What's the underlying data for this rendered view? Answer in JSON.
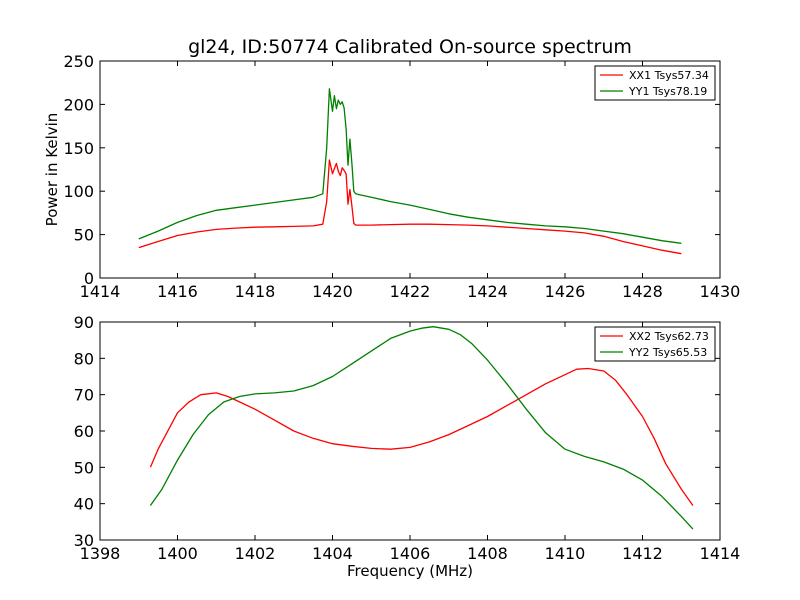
{
  "chart_data": [
    {
      "type": "line",
      "title": "gl24, ID:50774 Calibrated On-source spectrum",
      "xlabel": "",
      "ylabel": "Power in Kelvin",
      "xlim": [
        1414,
        1430
      ],
      "ylim": [
        0,
        250
      ],
      "xticks": [
        "1414",
        "1416",
        "1418",
        "1420",
        "1422",
        "1424",
        "1426",
        "1428",
        "1430"
      ],
      "yticks": [
        "0",
        "50",
        "100",
        "150",
        "200",
        "250"
      ],
      "legend_position": "top-right",
      "grid": false,
      "series": [
        {
          "name": "XX1 Tsys57.34",
          "color": "#ff0000",
          "x": [
            1415.0,
            1415.5,
            1416.0,
            1416.5,
            1417.0,
            1417.5,
            1418.0,
            1418.5,
            1419.0,
            1419.5,
            1419.75,
            1419.85,
            1419.92,
            1420.0,
            1420.05,
            1420.1,
            1420.15,
            1420.2,
            1420.25,
            1420.3,
            1420.35,
            1420.4,
            1420.45,
            1420.5,
            1420.55,
            1420.6,
            1420.7,
            1421.0,
            1421.5,
            1422.0,
            1422.5,
            1423.0,
            1423.5,
            1424.0,
            1424.5,
            1425.0,
            1425.5,
            1426.0,
            1426.5,
            1427.0,
            1427.5,
            1428.0,
            1428.5,
            1429.0
          ],
          "y": [
            35,
            42,
            49,
            53,
            56,
            57.5,
            58.5,
            59,
            59.5,
            60,
            62,
            88,
            136,
            120,
            126,
            132,
            123,
            118,
            127,
            124,
            120,
            85,
            102,
            83,
            63,
            61,
            61,
            61,
            61.5,
            62,
            62,
            61.5,
            61,
            60,
            58.5,
            57,
            55.5,
            54,
            52,
            48,
            42,
            37,
            32,
            28
          ]
        },
        {
          "name": "YY1 Tsys78.19",
          "color": "#008000",
          "x": [
            1415.0,
            1415.5,
            1416.0,
            1416.5,
            1417.0,
            1417.5,
            1418.0,
            1418.5,
            1419.0,
            1419.5,
            1419.75,
            1419.85,
            1419.92,
            1420.0,
            1420.05,
            1420.1,
            1420.15,
            1420.2,
            1420.25,
            1420.3,
            1420.35,
            1420.4,
            1420.45,
            1420.5,
            1420.55,
            1420.6,
            1420.7,
            1421.0,
            1421.5,
            1422.0,
            1422.5,
            1423.0,
            1423.5,
            1424.0,
            1424.5,
            1425.0,
            1425.5,
            1426.0,
            1426.5,
            1427.0,
            1427.5,
            1428.0,
            1428.5,
            1429.0
          ],
          "y": [
            45,
            54,
            64,
            72,
            78,
            81,
            84,
            87,
            90,
            93,
            97,
            150,
            218,
            192,
            210,
            195,
            205,
            200,
            203,
            196,
            172,
            130,
            160,
            132,
            100,
            97,
            96,
            93,
            88,
            84,
            79,
            74,
            70,
            67,
            64,
            62,
            60,
            59,
            57,
            54,
            51,
            47,
            43,
            40
          ]
        }
      ]
    },
    {
      "type": "line",
      "title": "",
      "xlabel": "Frequency (MHz)",
      "ylabel": "",
      "xlim": [
        1398,
        1414
      ],
      "ylim": [
        30,
        90
      ],
      "xticks": [
        "1398",
        "1400",
        "1402",
        "1404",
        "1406",
        "1408",
        "1410",
        "1412",
        "1414"
      ],
      "yticks": [
        "30",
        "40",
        "50",
        "60",
        "70",
        "80",
        "90"
      ],
      "legend_position": "top-right",
      "grid": false,
      "series": [
        {
          "name": "XX2 Tsys62.73",
          "color": "#ff0000",
          "x": [
            1399.3,
            1399.5,
            1399.8,
            1400.0,
            1400.3,
            1400.6,
            1401.0,
            1401.3,
            1401.6,
            1402.0,
            1402.5,
            1403.0,
            1403.5,
            1404.0,
            1404.5,
            1405.0,
            1405.5,
            1406.0,
            1406.5,
            1407.0,
            1407.5,
            1408.0,
            1408.5,
            1409.0,
            1409.5,
            1410.0,
            1410.3,
            1410.6,
            1411.0,
            1411.3,
            1411.6,
            1412.0,
            1412.3,
            1412.6,
            1413.0,
            1413.3
          ],
          "y": [
            50,
            55,
            61,
            65,
            68,
            70,
            70.5,
            69.5,
            68,
            66,
            63,
            60,
            58,
            56.5,
            55.8,
            55.2,
            55,
            55.5,
            57,
            59,
            61.5,
            64,
            67,
            70,
            73,
            75.5,
            77,
            77.2,
            76.5,
            74,
            70,
            64,
            58,
            51,
            44,
            39.5
          ]
        },
        {
          "name": "YY2 Tsys65.53",
          "color": "#008000",
          "x": [
            1399.3,
            1399.6,
            1400.0,
            1400.4,
            1400.8,
            1401.2,
            1401.6,
            1402.0,
            1402.5,
            1403.0,
            1403.5,
            1404.0,
            1404.5,
            1405.0,
            1405.5,
            1406.0,
            1406.3,
            1406.6,
            1407.0,
            1407.3,
            1407.6,
            1408.0,
            1408.5,
            1409.0,
            1409.5,
            1410.0,
            1410.5,
            1411.0,
            1411.5,
            1412.0,
            1412.5,
            1413.0,
            1413.3
          ],
          "y": [
            39.5,
            44,
            52,
            59,
            64.5,
            68,
            69.5,
            70.2,
            70.5,
            71,
            72.5,
            75,
            78.5,
            82,
            85.5,
            87.5,
            88.3,
            88.7,
            88,
            86.5,
            84,
            79.5,
            73,
            66,
            59.5,
            55,
            53,
            51.5,
            49.5,
            46.5,
            42,
            36.5,
            33
          ]
        }
      ]
    }
  ]
}
